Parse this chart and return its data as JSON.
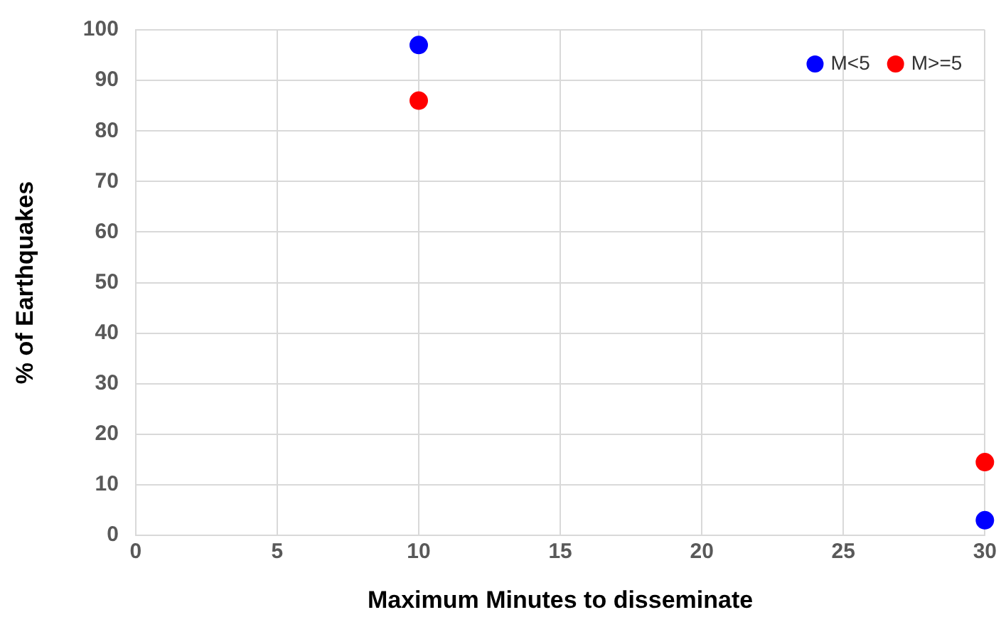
{
  "chart_data": {
    "type": "scatter",
    "xlabel": "Maximum Minutes to disseminate",
    "ylabel": "% of Earthquakes",
    "x": [
      10,
      30
    ],
    "series": [
      {
        "name": "M<5",
        "color": "#0000ff",
        "values": [
          97,
          3
        ]
      },
      {
        "name": "M>=5",
        "color": "#ff0000",
        "values": [
          86,
          14.5
        ]
      }
    ],
    "xlim": [
      0,
      30
    ],
    "xticks": [
      0,
      5,
      10,
      15,
      20,
      25,
      30
    ],
    "ylim": [
      0,
      100
    ],
    "yticks": [
      0,
      10,
      20,
      30,
      40,
      50,
      60,
      70,
      80,
      90,
      100
    ],
    "grid": true,
    "legend": "top right",
    "marker": "circle"
  }
}
